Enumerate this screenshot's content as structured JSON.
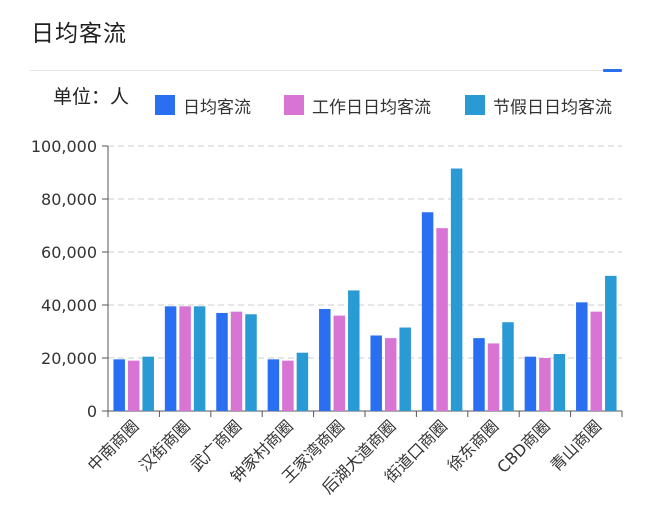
{
  "panel": {
    "title": "日均客流",
    "unit_label": "单位：人"
  },
  "colors": {
    "accent": "#2a6ff2",
    "gridline": "#cccccc",
    "axis": "#555555"
  },
  "chart_data": {
    "type": "bar",
    "title": "",
    "xlabel": "",
    "ylabel": "",
    "ylim": [
      0,
      100000
    ],
    "yticks": [
      0,
      20000,
      40000,
      60000,
      80000,
      100000
    ],
    "ytick_labels": [
      "0",
      "20,000",
      "40,000",
      "60,000",
      "80,000",
      "100,000"
    ],
    "grid": true,
    "legend_position": "top",
    "categories": [
      "中南商圈",
      "汉街商圈",
      "武广商圈",
      "钟家村商圈",
      "王家湾商圈",
      "后湖大道商圈",
      "街道口商圈",
      "徐东商圈",
      "CBD商圈",
      "青山商圈"
    ],
    "series": [
      {
        "name": "日均客流",
        "color": "#2a6ff2",
        "values": [
          19500,
          39500,
          37000,
          19500,
          38500,
          28500,
          75000,
          27500,
          20500,
          41000
        ]
      },
      {
        "name": "工作日日均客流",
        "color": "#d874d4",
        "values": [
          19000,
          39500,
          37500,
          19000,
          36000,
          27500,
          69000,
          25500,
          20000,
          37500
        ]
      },
      {
        "name": "节假日日均客流",
        "color": "#2a9ad4",
        "values": [
          20500,
          39500,
          36500,
          22000,
          45500,
          31500,
          91500,
          33500,
          21500,
          51000
        ]
      }
    ]
  }
}
